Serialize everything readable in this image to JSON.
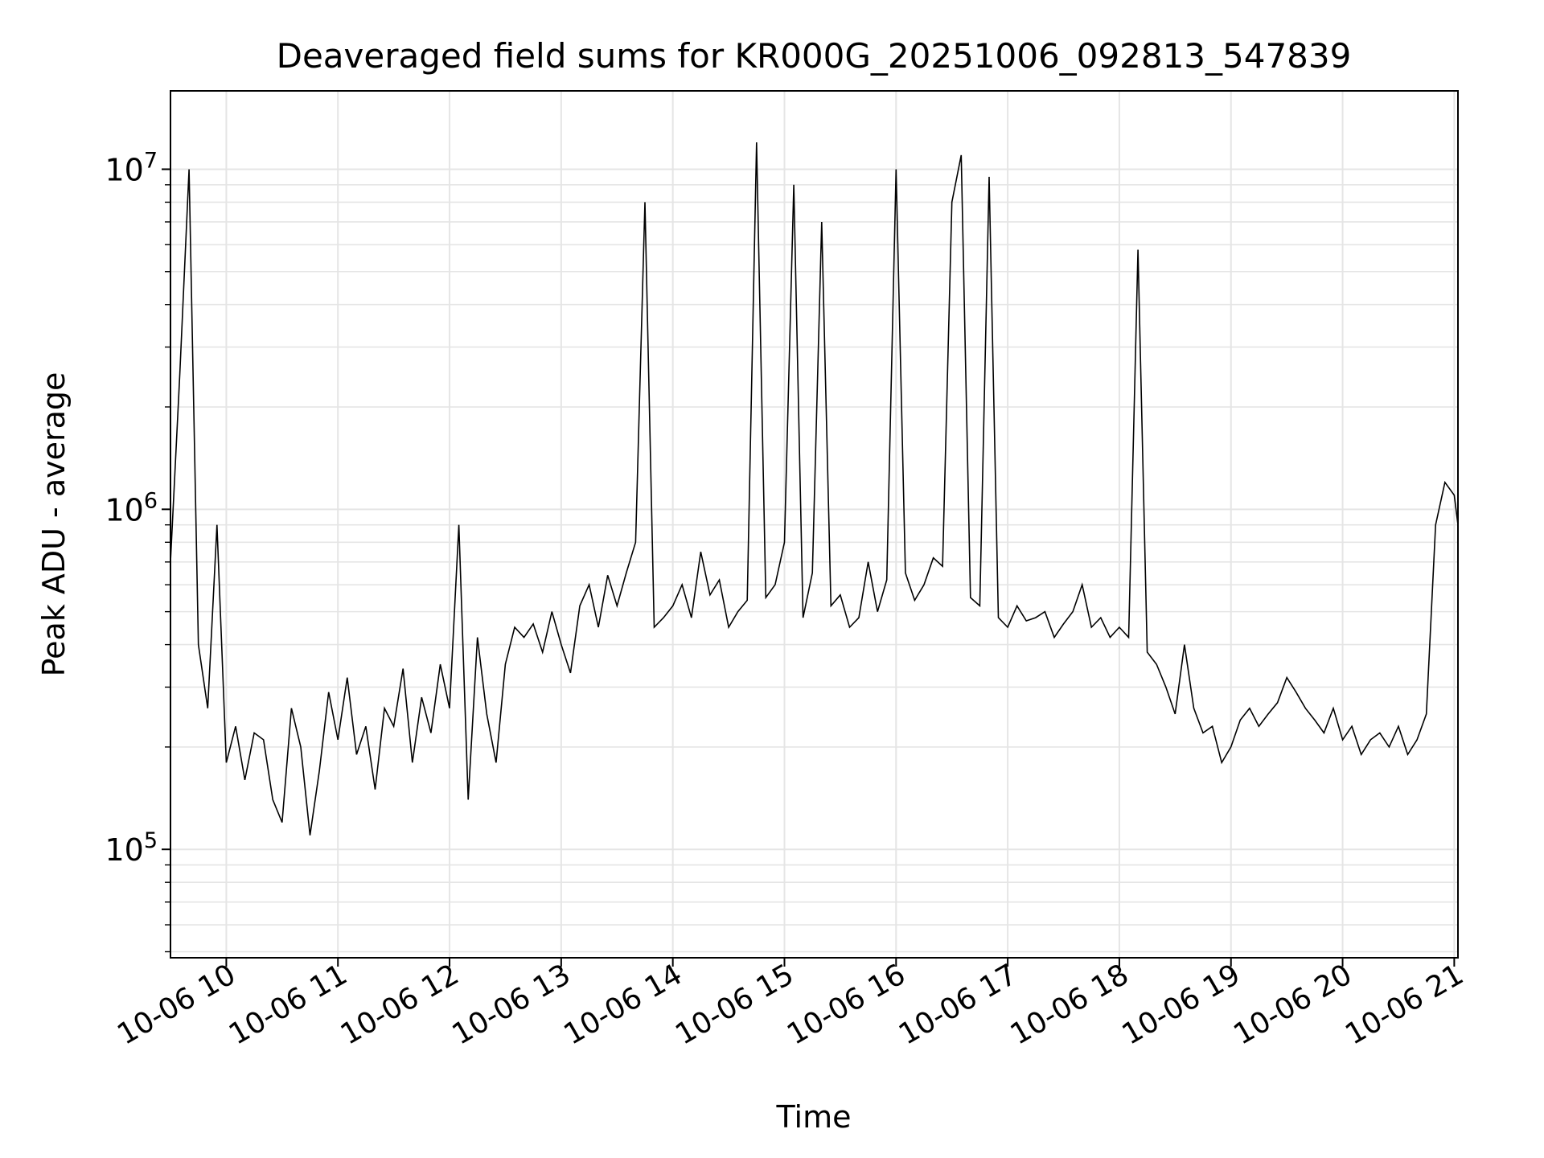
{
  "chart_data": {
    "type": "line",
    "title": "Deaveraged field sums for KR000G_20251006_092813_547839",
    "xlabel": "Time",
    "ylabel": "Peak ADU - average",
    "yscale": "log",
    "ylim": [
      48000,
      17000000
    ],
    "xlim": [
      "2025-10-06 09:30",
      "2025-10-06 21:02"
    ],
    "grid": true,
    "line_color": "#000000",
    "grid_color": "#e5e5e5",
    "x_ticks": [
      {
        "value": "2025-10-06 10:00",
        "label": "10-06 10"
      },
      {
        "value": "2025-10-06 11:00",
        "label": "10-06 11"
      },
      {
        "value": "2025-10-06 12:00",
        "label": "10-06 12"
      },
      {
        "value": "2025-10-06 13:00",
        "label": "10-06 13"
      },
      {
        "value": "2025-10-06 14:00",
        "label": "10-06 14"
      },
      {
        "value": "2025-10-06 15:00",
        "label": "10-06 15"
      },
      {
        "value": "2025-10-06 16:00",
        "label": "10-06 16"
      },
      {
        "value": "2025-10-06 17:00",
        "label": "10-06 17"
      },
      {
        "value": "2025-10-06 18:00",
        "label": "10-06 18"
      },
      {
        "value": "2025-10-06 19:00",
        "label": "10-06 19"
      },
      {
        "value": "2025-10-06 20:00",
        "label": "10-06 20"
      },
      {
        "value": "2025-10-06 21:00",
        "label": "10-06 21"
      }
    ],
    "y_ticks": [
      {
        "value": 100000,
        "base": "10",
        "exp": "5"
      },
      {
        "value": 1000000,
        "base": "10",
        "exp": "6"
      },
      {
        "value": 10000000,
        "base": "10",
        "exp": "7"
      }
    ],
    "series": [
      {
        "x": [
          "2025-10-06 09:30",
          "2025-10-06 09:35",
          "2025-10-06 09:40",
          "2025-10-06 09:45",
          "2025-10-06 09:50",
          "2025-10-06 09:55",
          "2025-10-06 10:00",
          "2025-10-06 10:05",
          "2025-10-06 10:10",
          "2025-10-06 10:15",
          "2025-10-06 10:20",
          "2025-10-06 10:25",
          "2025-10-06 10:30",
          "2025-10-06 10:35",
          "2025-10-06 10:40",
          "2025-10-06 10:45",
          "2025-10-06 10:50",
          "2025-10-06 10:55",
          "2025-10-06 11:00",
          "2025-10-06 11:05",
          "2025-10-06 11:10",
          "2025-10-06 11:15",
          "2025-10-06 11:20",
          "2025-10-06 11:25",
          "2025-10-06 11:30",
          "2025-10-06 11:35",
          "2025-10-06 11:40",
          "2025-10-06 11:45",
          "2025-10-06 11:50",
          "2025-10-06 11:55",
          "2025-10-06 12:00",
          "2025-10-06 12:05",
          "2025-10-06 12:10",
          "2025-10-06 12:15",
          "2025-10-06 12:20",
          "2025-10-06 12:25",
          "2025-10-06 12:30",
          "2025-10-06 12:35",
          "2025-10-06 12:40",
          "2025-10-06 12:45",
          "2025-10-06 12:50",
          "2025-10-06 12:55",
          "2025-10-06 13:00",
          "2025-10-06 13:05",
          "2025-10-06 13:10",
          "2025-10-06 13:15",
          "2025-10-06 13:20",
          "2025-10-06 13:25",
          "2025-10-06 13:30",
          "2025-10-06 13:35",
          "2025-10-06 13:40",
          "2025-10-06 13:45",
          "2025-10-06 13:50",
          "2025-10-06 13:55",
          "2025-10-06 14:00",
          "2025-10-06 14:05",
          "2025-10-06 14:10",
          "2025-10-06 14:15",
          "2025-10-06 14:20",
          "2025-10-06 14:25",
          "2025-10-06 14:30",
          "2025-10-06 14:35",
          "2025-10-06 14:40",
          "2025-10-06 14:45",
          "2025-10-06 14:50",
          "2025-10-06 14:55",
          "2025-10-06 15:00",
          "2025-10-06 15:05",
          "2025-10-06 15:10",
          "2025-10-06 15:15",
          "2025-10-06 15:20",
          "2025-10-06 15:25",
          "2025-10-06 15:30",
          "2025-10-06 15:35",
          "2025-10-06 15:40",
          "2025-10-06 15:45",
          "2025-10-06 15:50",
          "2025-10-06 15:55",
          "2025-10-06 16:00",
          "2025-10-06 16:05",
          "2025-10-06 16:10",
          "2025-10-06 16:15",
          "2025-10-06 16:20",
          "2025-10-06 16:25",
          "2025-10-06 16:30",
          "2025-10-06 16:35",
          "2025-10-06 16:40",
          "2025-10-06 16:45",
          "2025-10-06 16:50",
          "2025-10-06 16:55",
          "2025-10-06 17:00",
          "2025-10-06 17:05",
          "2025-10-06 17:10",
          "2025-10-06 17:15",
          "2025-10-06 17:20",
          "2025-10-06 17:25",
          "2025-10-06 17:30",
          "2025-10-06 17:35",
          "2025-10-06 17:40",
          "2025-10-06 17:45",
          "2025-10-06 17:50",
          "2025-10-06 17:55",
          "2025-10-06 18:00",
          "2025-10-06 18:05",
          "2025-10-06 18:10",
          "2025-10-06 18:15",
          "2025-10-06 18:20",
          "2025-10-06 18:25",
          "2025-10-06 18:30",
          "2025-10-06 18:35",
          "2025-10-06 18:40",
          "2025-10-06 18:45",
          "2025-10-06 18:50",
          "2025-10-06 18:55",
          "2025-10-06 19:00",
          "2025-10-06 19:05",
          "2025-10-06 19:10",
          "2025-10-06 19:15",
          "2025-10-06 19:20",
          "2025-10-06 19:25",
          "2025-10-06 19:30",
          "2025-10-06 19:35",
          "2025-10-06 19:40",
          "2025-10-06 19:45",
          "2025-10-06 19:50",
          "2025-10-06 19:55",
          "2025-10-06 20:00",
          "2025-10-06 20:05",
          "2025-10-06 20:10",
          "2025-10-06 20:15",
          "2025-10-06 20:20",
          "2025-10-06 20:25",
          "2025-10-06 20:30",
          "2025-10-06 20:35",
          "2025-10-06 20:40",
          "2025-10-06 20:45",
          "2025-10-06 20:50",
          "2025-10-06 20:55",
          "2025-10-06 21:00",
          "2025-10-06 21:02"
        ],
        "y": [
          700000,
          2500000,
          10000000,
          400000,
          260000,
          900000,
          180000,
          230000,
          160000,
          220000,
          210000,
          140000,
          120000,
          260000,
          200000,
          110000,
          170000,
          290000,
          210000,
          320000,
          190000,
          230000,
          150000,
          260000,
          230000,
          340000,
          180000,
          280000,
          220000,
          350000,
          260000,
          900000,
          140000,
          420000,
          250000,
          180000,
          350000,
          450000,
          420000,
          460000,
          380000,
          500000,
          400000,
          330000,
          520000,
          600000,
          450000,
          640000,
          520000,
          650000,
          800000,
          8000000,
          450000,
          480000,
          520000,
          600000,
          480000,
          750000,
          560000,
          620000,
          450000,
          500000,
          540000,
          12000000,
          550000,
          600000,
          800000,
          9000000,
          480000,
          650000,
          7000000,
          520000,
          560000,
          450000,
          480000,
          700000,
          500000,
          620000,
          10000000,
          650000,
          540000,
          600000,
          720000,
          680000,
          8000000,
          11000000,
          550000,
          520000,
          9500000,
          480000,
          450000,
          520000,
          470000,
          480000,
          500000,
          420000,
          460000,
          500000,
          600000,
          450000,
          480000,
          420000,
          450000,
          420000,
          5800000,
          380000,
          350000,
          300000,
          250000,
          400000,
          260000,
          220000,
          230000,
          180000,
          200000,
          240000,
          260000,
          230000,
          250000,
          270000,
          320000,
          290000,
          260000,
          240000,
          220000,
          260000,
          210000,
          230000,
          190000,
          210000,
          220000,
          200000,
          230000,
          190000,
          210000,
          250000,
          900000,
          1200000,
          1100000,
          900000
        ]
      }
    ]
  }
}
